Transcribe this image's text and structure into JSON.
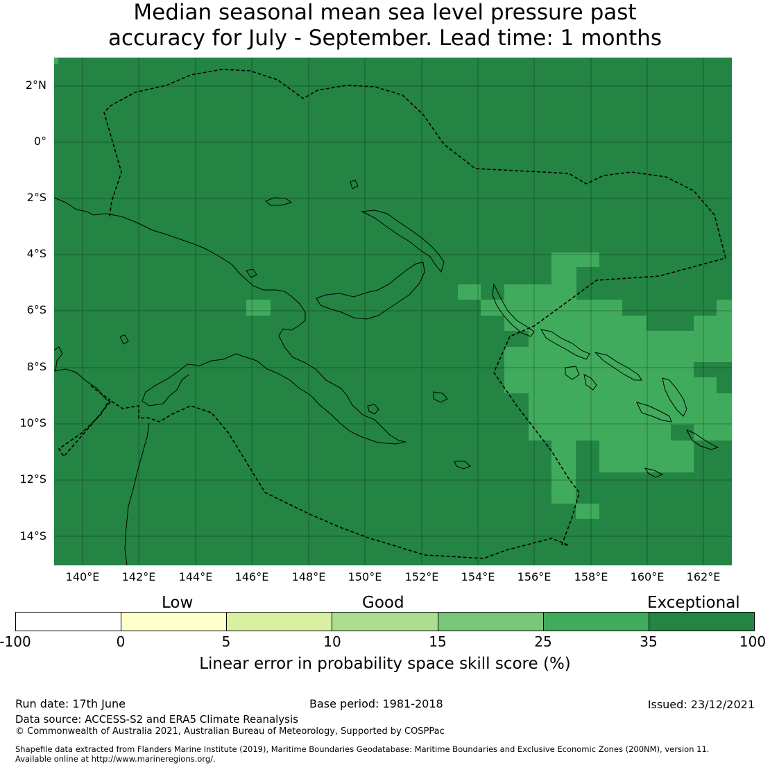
{
  "title": {
    "line1": "Median seasonal mean sea level pressure past",
    "line2": "accuracy for July - September. Lead time: 1 months"
  },
  "map": {
    "lat_labels": [
      "2°N",
      "0°",
      "2°S",
      "4°S",
      "6°S",
      "8°S",
      "10°S",
      "12°S",
      "14°S"
    ],
    "lon_labels": [
      "140°E",
      "142°E",
      "144°E",
      "146°E",
      "148°E",
      "150°E",
      "152°E",
      "154°E",
      "156°E",
      "158°E",
      "160°E",
      "162°E"
    ],
    "extent": {
      "lon_min": 139.0,
      "lon_max": 163.0,
      "lat_min": -15.0,
      "lat_max": 3.0
    },
    "gridlines": true,
    "background_category": "35 to 100 (Exceptional)",
    "colors": {
      "exceptional": "#238443",
      "very_good": "#41ab5d",
      "outline": "#000000"
    },
    "features": [
      "coastlines",
      "EEZ boundary (dashed)"
    ]
  },
  "colorbar": {
    "categories": [
      "Low",
      "Good",
      "Exceptional"
    ],
    "ticks": [
      "-100",
      "0",
      "5",
      "10",
      "15",
      "25",
      "35",
      "100"
    ],
    "colors": [
      "#ffffff",
      "#ffffcc",
      "#d9f0a3",
      "#addd8e",
      "#78c679",
      "#41ab5d",
      "#238443"
    ],
    "label": "Linear error in probability space skill score (%)"
  },
  "footer": {
    "run_date": "Run date: 17th June",
    "base_period": "Base period: 1981-2018",
    "issued": "Issued: 23/12/2021",
    "data_source": "Data source: ACCESS-S2 and ERA5 Climate Reanalysis",
    "copyright": "© Commonwealth of Australia 2021, Australian Bureau of Meteorology, Supported by COSPPac",
    "shapefile_line1": "Shapefile data extracted from Flanders Marine Institute (2019), Maritime Boundaries Geodatabase: Maritime Boundaries and Exclusive Economic Zones (200NM), version 11.",
    "shapefile_line2": "Available online at http://www.marineregions.org/."
  }
}
